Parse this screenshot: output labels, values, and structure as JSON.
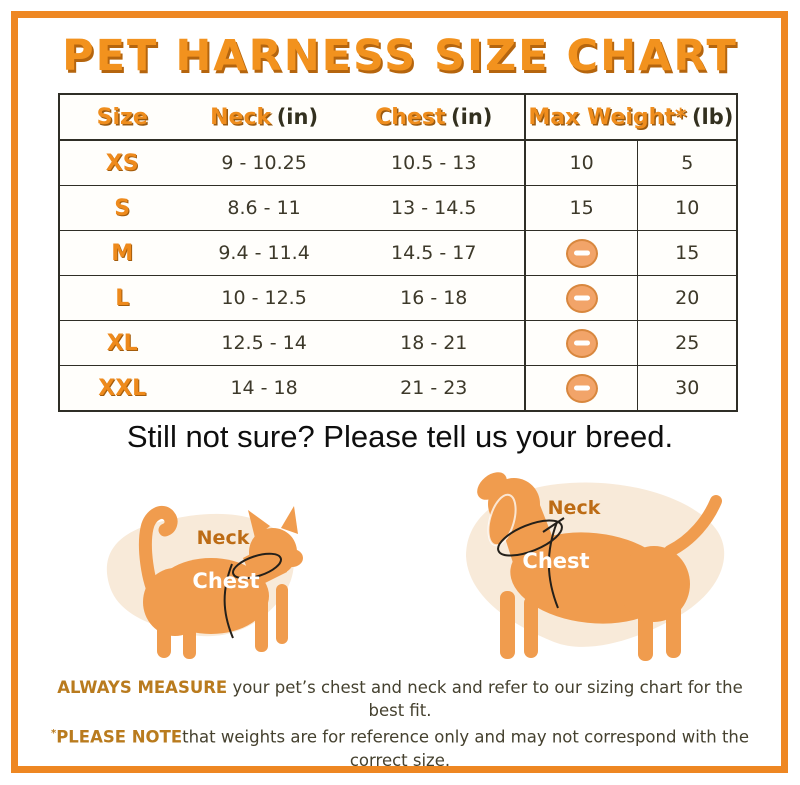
{
  "title": "PET HARNESS SIZE CHART",
  "table": {
    "headers": {
      "size": "Size",
      "neck": "Neck",
      "neck_unit": "(in)",
      "chest": "Chest",
      "chest_unit": "(in)",
      "weight": "Max Weight*",
      "weight_unit": "(lb)"
    },
    "rows": [
      {
        "size": "XS",
        "neck": "9 - 10.25",
        "chest": "10.5 - 13",
        "weight_col_1": "10",
        "weight_col_2": "5"
      },
      {
        "size": "S",
        "neck": "8.6 - 11",
        "chest": "13 - 14.5",
        "weight_col_1": "15",
        "weight_col_2": "10"
      },
      {
        "size": "M",
        "neck": "9.4 - 11.4",
        "chest": "14.5 - 17",
        "weight_col_1": "minus-icon",
        "weight_col_2": "15"
      },
      {
        "size": "L",
        "neck": "10 - 12.5",
        "chest": "16 - 18",
        "weight_col_1": "minus-icon",
        "weight_col_2": "20"
      },
      {
        "size": "XL",
        "neck": "12.5 - 14",
        "chest": "18 - 21",
        "weight_col_1": "minus-icon",
        "weight_col_2": "25"
      },
      {
        "size": "XXL",
        "neck": "14 - 18",
        "chest": "21 - 23",
        "weight_col_1": "minus-icon",
        "weight_col_2": "30"
      }
    ]
  },
  "chart_data": {
    "type": "table",
    "title": "PET HARNESS SIZE CHART",
    "columns": [
      "Size",
      "Neck (in)",
      "Chest (in)",
      "Max Weight* (lb) col 1",
      "Max Weight* (lb) col 2"
    ],
    "rows": [
      [
        "XS",
        "9 - 10.25",
        "10.5 - 13",
        "10",
        "5"
      ],
      [
        "S",
        "8.6 - 11",
        "13 - 14.5",
        "15",
        "10"
      ],
      [
        "M",
        "9.4 - 11.4",
        "14.5 - 17",
        null,
        "15"
      ],
      [
        "L",
        "10 - 12.5",
        "16 - 18",
        null,
        "20"
      ],
      [
        "XL",
        "12.5 - 14",
        "18 - 21",
        null,
        "25"
      ],
      [
        "XXL",
        "14 - 18",
        "21 - 23",
        null,
        "30"
      ]
    ]
  },
  "subtitle": "Still not sure? Please tell us your breed.",
  "diagrams": {
    "neck_label": "Neck",
    "chest_label": "Chest"
  },
  "footer": {
    "line1_bold": "ALWAYS MEASURE",
    "line1_rest": " your pet’s chest and neck and refer to our sizing chart for the best fit.",
    "note_mark": "*",
    "line2_bold": "PLEASE NOTE",
    "line2_rest": "that weights are for reference only and may not correspond with the correct size."
  },
  "colors": {
    "frame_orange": "#ee8722",
    "title_orange": "#f2921e",
    "title_shadow": "#b5650e",
    "header_orange": "#ef8d1d",
    "table_border": "#2f2e26",
    "number_text": "#3d392a",
    "minus_icon_fill": "#f2a469",
    "minus_icon_border": "#d8873e",
    "pet_body_orange": "#f09c4e",
    "blob_cream": "#f8ead9",
    "footer_bold_orange": "#b97b1e",
    "footer_text": "#45412f"
  }
}
